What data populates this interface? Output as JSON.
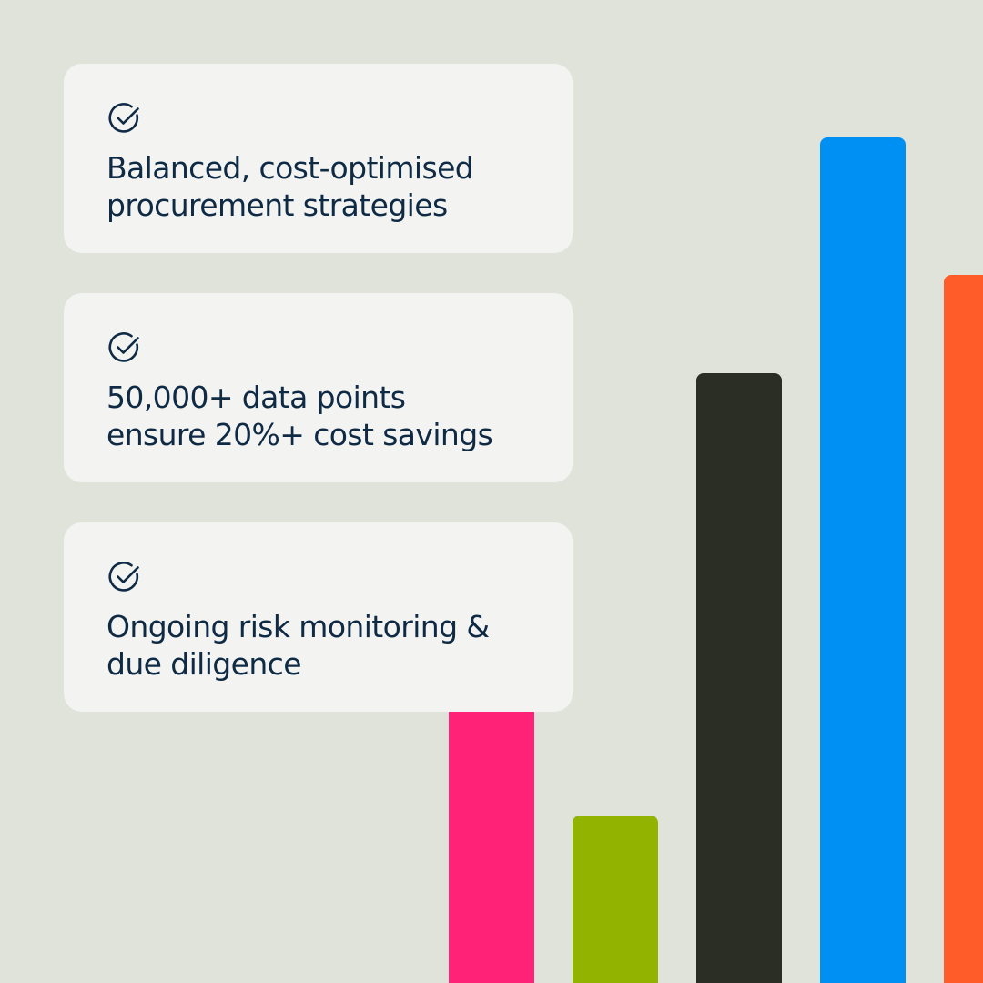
{
  "colors": {
    "background": "#e0e3da",
    "card_background": "#f3f3f1",
    "text": "#0f2a44",
    "icon": "#0f2a44"
  },
  "cards": [
    {
      "icon": "check-circle-icon",
      "lines": [
        "Balanced, cost-optimised",
        "procurement strategies"
      ]
    },
    {
      "icon": "check-circle-icon",
      "lines": [
        "50,000+ data points",
        "ensure 20%+ cost savings"
      ]
    },
    {
      "icon": "check-circle-icon",
      "lines": [
        "Ongoing risk monitoring &",
        "due diligence"
      ]
    }
  ],
  "chart_data": {
    "type": "bar",
    "title": "",
    "xlabel": "",
    "ylabel": "",
    "grid": false,
    "legend": "none",
    "values": [
      0.44,
      0.17,
      0.62,
      0.86,
      0.72
    ],
    "colors": [
      "#ff2277",
      "#92b400",
      "#2a2e25",
      "#0090f4",
      "#ff5c2a"
    ]
  }
}
